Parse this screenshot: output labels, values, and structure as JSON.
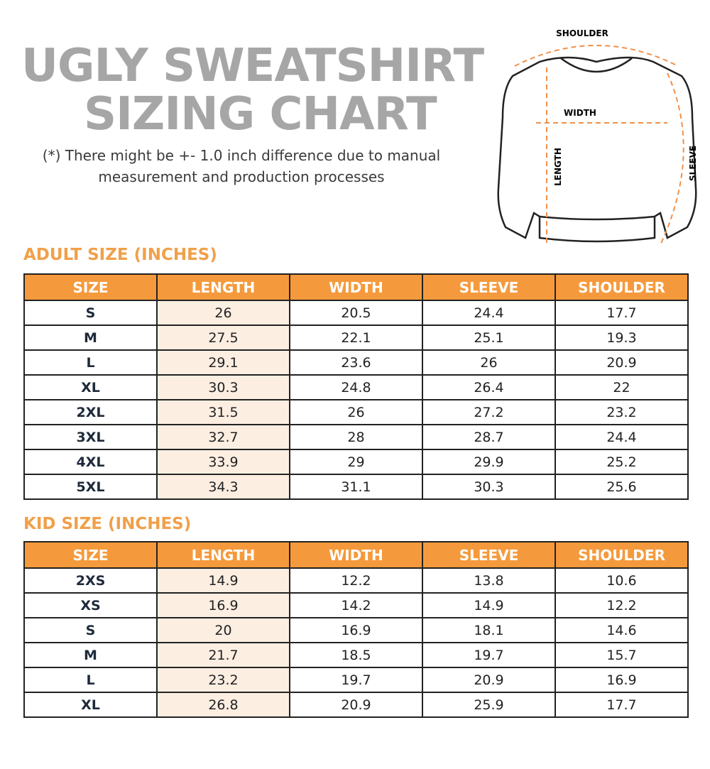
{
  "title_line1": "UGLY SWEATSHIRT",
  "title_line2": "SIZING CHART",
  "note": "(*) There might be +- 1.0 inch difference due to manual measurement and production processes",
  "diagram": {
    "shoulder": "SHOULDER",
    "width": "WIDTH",
    "length": "LENGTH",
    "sleeve": "SLEEVE"
  },
  "colors": {
    "accent": "#f59a3c",
    "title_gray": "#a6a6a6",
    "length_col_bg": "#fdeee2"
  },
  "headers": [
    "SIZE",
    "LENGTH",
    "WIDTH",
    "SLEEVE",
    "SHOULDER"
  ],
  "adult": {
    "heading": "ADULT SIZE (INCHES)",
    "rows": [
      [
        "S",
        "26",
        "20.5",
        "24.4",
        "17.7"
      ],
      [
        "M",
        "27.5",
        "22.1",
        "25.1",
        "19.3"
      ],
      [
        "L",
        "29.1",
        "23.6",
        "26",
        "20.9"
      ],
      [
        "XL",
        "30.3",
        "24.8",
        "26.4",
        "22"
      ],
      [
        "2XL",
        "31.5",
        "26",
        "27.2",
        "23.2"
      ],
      [
        "3XL",
        "32.7",
        "28",
        "28.7",
        "24.4"
      ],
      [
        "4XL",
        "33.9",
        "29",
        "29.9",
        "25.2"
      ],
      [
        "5XL",
        "34.3",
        "31.1",
        "30.3",
        "25.6"
      ]
    ]
  },
  "kid": {
    "heading": "KID SIZE (INCHES)",
    "rows": [
      [
        "2XS",
        "14.9",
        "12.2",
        "13.8",
        "10.6"
      ],
      [
        "XS",
        "16.9",
        "14.2",
        "14.9",
        "12.2"
      ],
      [
        "S",
        "20",
        "16.9",
        "18.1",
        "14.6"
      ],
      [
        "M",
        "21.7",
        "18.5",
        "19.7",
        "15.7"
      ],
      [
        "L",
        "23.2",
        "19.7",
        "20.9",
        "16.9"
      ],
      [
        "XL",
        "26.8",
        "20.9",
        "25.9",
        "17.7"
      ]
    ]
  }
}
